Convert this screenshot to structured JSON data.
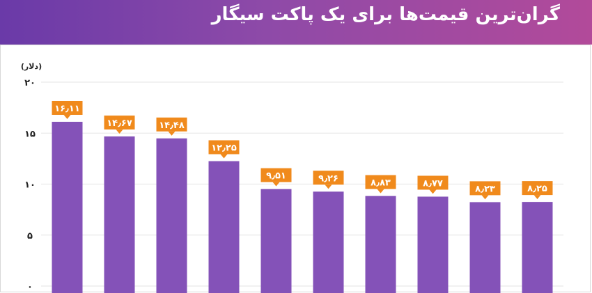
{
  "header": {
    "title": "گران‌ترین قیمت‌ها برای یک پاکت سیگار"
  },
  "colors": {
    "header_start": "#6a3aa8",
    "header_end": "#b24a9a",
    "bar": "#8452b8",
    "label_bg": "#f08a1c",
    "grid": "#e3e3e3"
  },
  "chart_data": {
    "type": "bar",
    "title": "گران‌ترین قیمت‌ها برای یک پاکت سیگار",
    "ylabel": "(دلار)",
    "ylim": [
      0,
      20
    ],
    "yticks": [
      0,
      5,
      10,
      15,
      20
    ],
    "ytick_labels": [
      "۰",
      "۵",
      "۱۰",
      "۱۵",
      "۲۰"
    ],
    "grid": true,
    "values": [
      16.11,
      14.67,
      14.48,
      12.25,
      9.51,
      9.26,
      8.83,
      8.77,
      8.23,
      8.25
    ],
    "value_labels": [
      "۱۶٫۱۱",
      "۱۴٫۶۷",
      "۱۴٫۴۸",
      "۱۲٫۲۵",
      "۹٫۵۱",
      "۹٫۲۶",
      "۸٫۸۳",
      "۸٫۷۷",
      "۸٫۲۳",
      "۸٫۲۵"
    ]
  }
}
